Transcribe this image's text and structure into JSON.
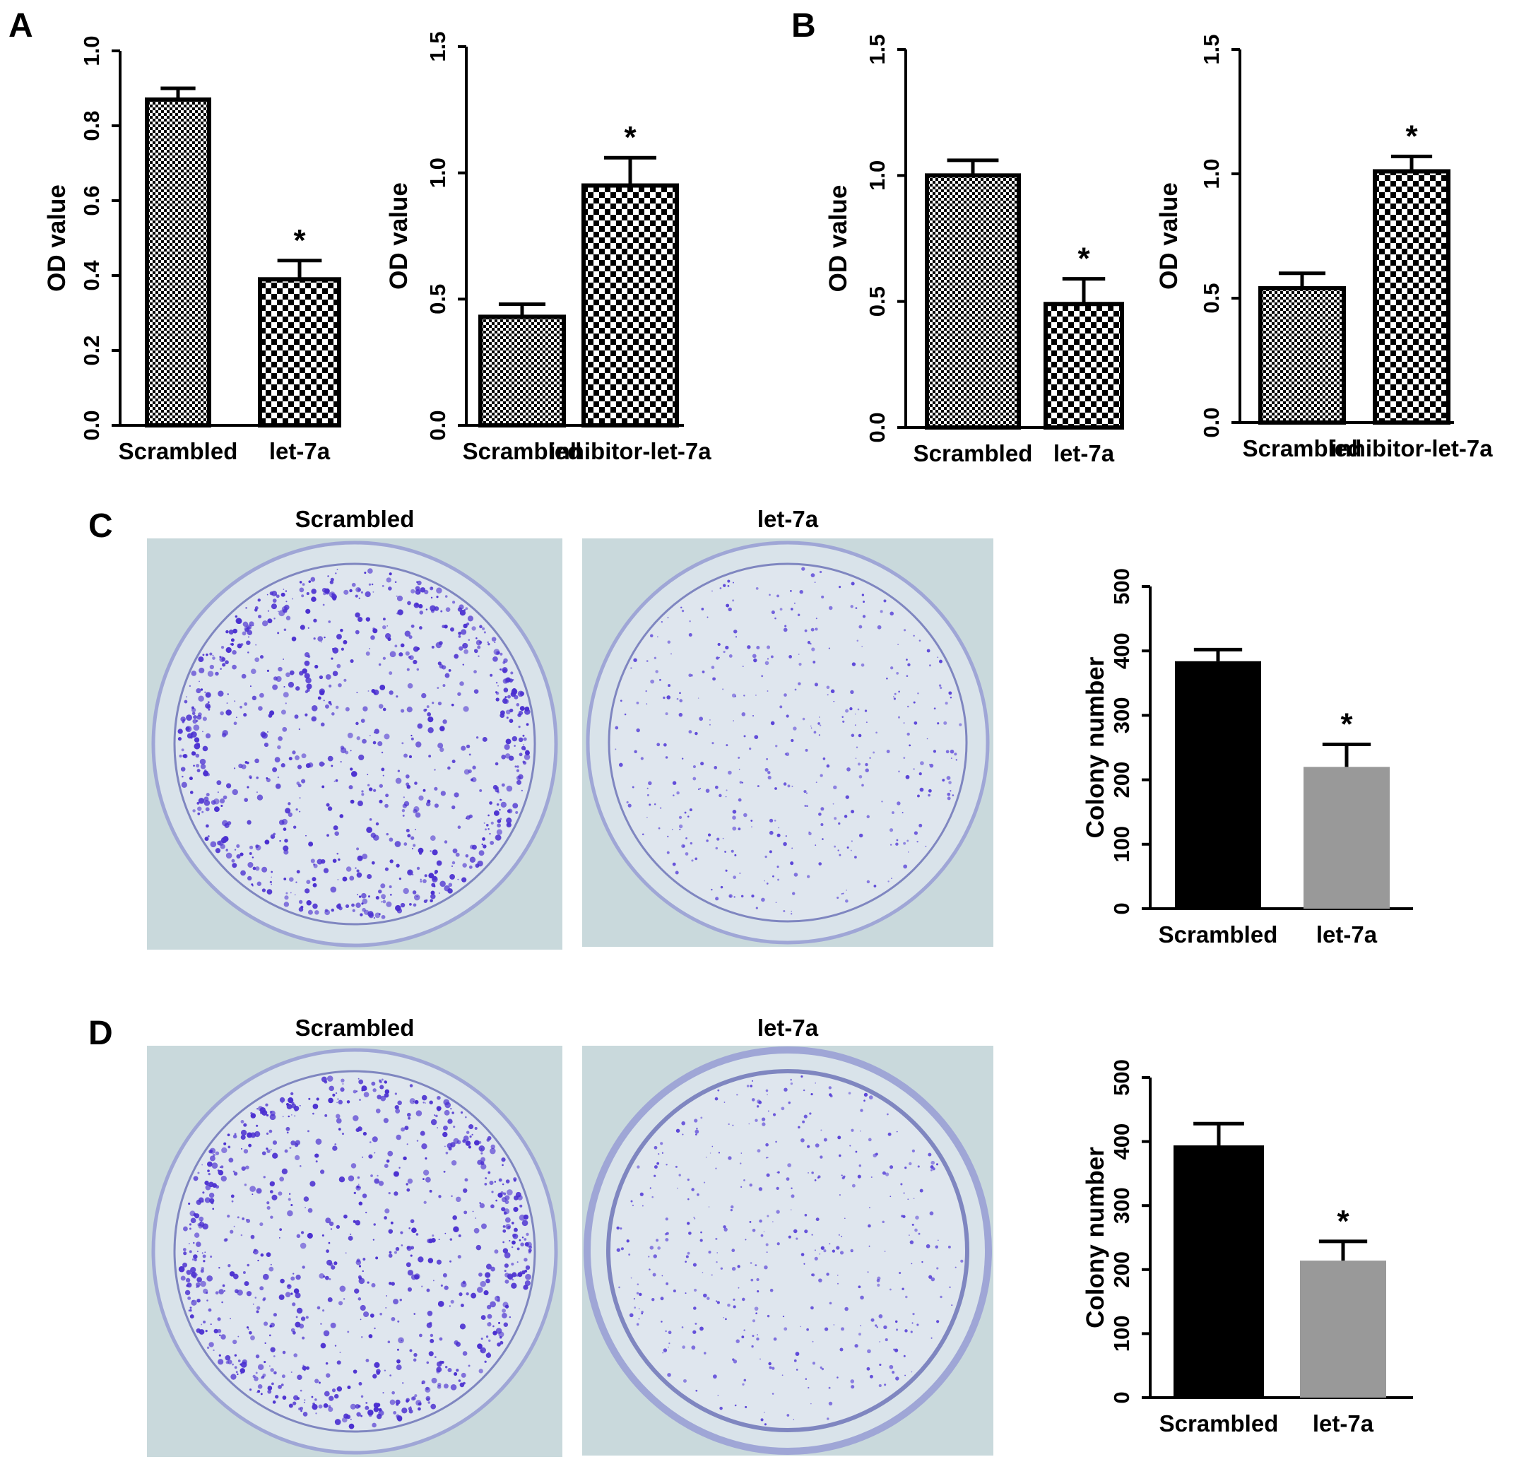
{
  "panel_labels": [
    "A",
    "B",
    "C",
    "D"
  ],
  "chart_data": [
    {
      "type": "bar",
      "panel": "A",
      "categories": [
        "Scrambled",
        "let-7a"
      ],
      "values": [
        0.87,
        0.39
      ],
      "errors": [
        0.03,
        0.05
      ],
      "significance": [
        "",
        "*"
      ],
      "patterns": [
        "fine-check",
        "checker"
      ],
      "ylabel": "OD value",
      "ylim": [
        0,
        1.0
      ],
      "yticks": [
        "0.0",
        "0.2",
        "0.4",
        "0.6",
        "0.8",
        "1.0"
      ]
    },
    {
      "type": "bar",
      "panel": "A",
      "categories": [
        "Scrambled",
        "inhibitor-let-7a"
      ],
      "values": [
        0.43,
        0.95
      ],
      "errors": [
        0.05,
        0.11
      ],
      "significance": [
        "",
        "*"
      ],
      "patterns": [
        "fine-check",
        "checker"
      ],
      "ylabel": "OD value",
      "ylim": [
        0,
        1.5
      ],
      "yticks": [
        "0.0",
        "0.5",
        "1.0",
        "1.5"
      ]
    },
    {
      "type": "bar",
      "panel": "B",
      "categories": [
        "Scrambled",
        "let-7a"
      ],
      "values": [
        1.0,
        0.49
      ],
      "errors": [
        0.06,
        0.1
      ],
      "significance": [
        "",
        "*"
      ],
      "patterns": [
        "fine-check",
        "checker"
      ],
      "ylabel": "OD value",
      "ylim": [
        0,
        1.5
      ],
      "yticks": [
        "0.0",
        "0.5",
        "1.0",
        "1.5"
      ]
    },
    {
      "type": "bar",
      "panel": "B",
      "categories": [
        "Scrambled",
        "inhibitor-let-7a"
      ],
      "values": [
        0.54,
        1.01
      ],
      "errors": [
        0.06,
        0.06
      ],
      "significance": [
        "",
        "*"
      ],
      "patterns": [
        "fine-check",
        "checker"
      ],
      "ylabel": "OD value",
      "ylim": [
        0,
        1.5
      ],
      "yticks": [
        "0.0",
        "0.5",
        "1.0",
        "1.5"
      ]
    },
    {
      "type": "bar",
      "panel": "C",
      "categories": [
        "Scrambled",
        "let-7a"
      ],
      "values": [
        384,
        220
      ],
      "errors": [
        18,
        35
      ],
      "significance": [
        "",
        "*"
      ],
      "colors": [
        "#000000",
        "#999999"
      ],
      "ylabel": "Colony number",
      "ylim": [
        0,
        500
      ],
      "yticks": [
        "0",
        "100",
        "200",
        "300",
        "400",
        "500"
      ]
    },
    {
      "type": "bar",
      "panel": "D",
      "categories": [
        "Scrambled",
        "let-7a"
      ],
      "values": [
        394,
        214
      ],
      "errors": [
        34,
        30
      ],
      "significance": [
        "",
        "*"
      ],
      "colors": [
        "#000000",
        "#999999"
      ],
      "ylabel": "Colony number",
      "ylim": [
        0,
        500
      ],
      "yticks": [
        "0",
        "100",
        "200",
        "300",
        "400",
        "500"
      ]
    }
  ],
  "photos": [
    {
      "panel": "C",
      "title": "Scrambled",
      "density": "high",
      "stain": "#4a2fd0"
    },
    {
      "panel": "C",
      "title": "let-7a",
      "density": "low",
      "stain": "#5a44d8"
    },
    {
      "panel": "D",
      "title": "Scrambled",
      "density": "high",
      "stain": "#4a2fd0"
    },
    {
      "panel": "D",
      "title": "let-7a",
      "density": "low",
      "stain": "#5a44d8"
    }
  ],
  "colors": {
    "photo_background": "#c9d9dc",
    "dish_rim": "#9fa6d6",
    "dish_inner_rim": "#7f86c0",
    "bar_outline": "#000000"
  }
}
